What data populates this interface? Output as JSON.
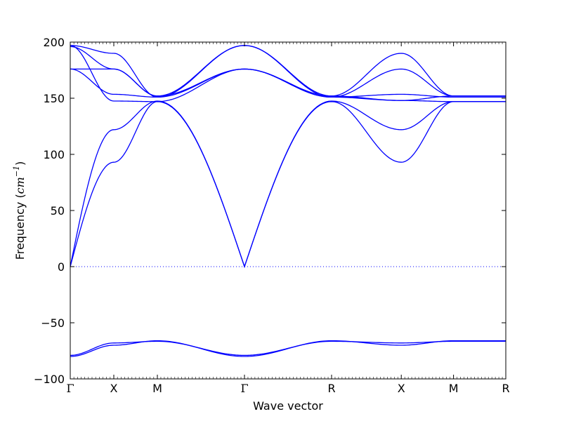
{
  "chart_data": {
    "type": "line",
    "title": "",
    "xlabel": "Wave vector",
    "ylabel": {
      "prefix": "Frequency (",
      "unit_base": "cm",
      "unit_exp": "−1",
      "suffix": ")"
    },
    "ylim": [
      -100,
      200
    ],
    "yticks": [
      -100,
      -50,
      0,
      50,
      100,
      150,
      200
    ],
    "ytick_labels": [
      "−100",
      "−50",
      "0",
      "50",
      "100",
      "150",
      "200"
    ],
    "grid": false,
    "legend": "none",
    "zero_line": {
      "y": 0,
      "style": "dotted"
    },
    "line_color": "#0000ff",
    "high_symmetry_points": [
      "Γ",
      "X",
      "M",
      "Γ",
      "R",
      "X",
      "M",
      "R"
    ],
    "segment_lengths": [
      0.5,
      0.5,
      1.0,
      1.0,
      0.8,
      0.6,
      0.6
    ],
    "series": [
      {
        "nodes": [
          197,
          190,
          151,
          197,
          152,
          190,
          152,
          152
        ]
      },
      {
        "nodes": [
          196,
          176,
          152,
          197,
          151,
          176,
          152,
          152
        ]
      },
      {
        "nodes": [
          176,
          153.5,
          151,
          176,
          151,
          153.5,
          151,
          151
        ]
      },
      {
        "nodes": [
          176,
          176,
          152,
          176,
          152,
          148,
          152,
          152
        ]
      },
      {
        "nodes": [
          0,
          122,
          147.5,
          0,
          147.5,
          122,
          147,
          147
        ]
      },
      {
        "nodes": [
          0,
          93,
          147,
          0,
          147,
          93,
          147,
          147
        ]
      },
      {
        "nodes": [
          197,
          147.5,
          147,
          176,
          151,
          148,
          147,
          147
        ]
      },
      {
        "nodes": [
          -80,
          -70,
          -66,
          -80,
          -66,
          -70,
          -66,
          -66
        ]
      },
      {
        "nodes": [
          -79,
          -68,
          -66.5,
          -79,
          -66.5,
          -68,
          -66.5,
          -66.5
        ]
      }
    ]
  }
}
